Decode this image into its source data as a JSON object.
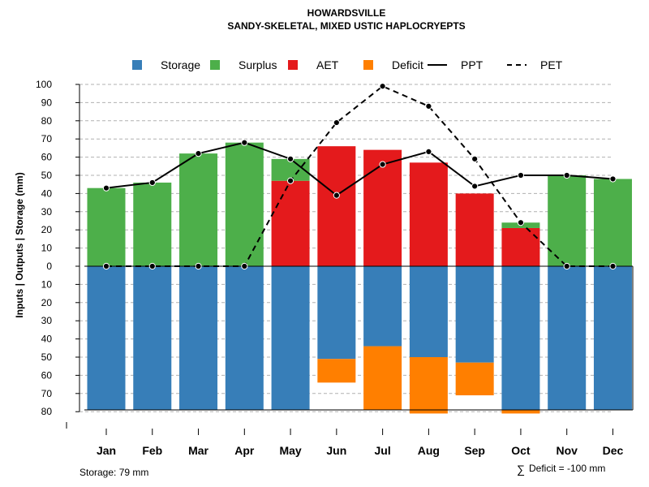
{
  "chart_data": {
    "type": "bar",
    "title": "HOWARDSVILLE",
    "subtitle": "SANDY-SKELETAL, MIXED USTIC HAPLOCRYEPTS",
    "ylabel": "Inputs | Outputs | Storage    (mm)",
    "ylim": [
      -80,
      100
    ],
    "grid": true,
    "categories": [
      "Jan",
      "Feb",
      "Mar",
      "Apr",
      "May",
      "Jun",
      "Jul",
      "Aug",
      "Sep",
      "Oct",
      "Nov",
      "Dec"
    ],
    "y_ticks_pos": [
      0,
      10,
      20,
      30,
      40,
      50,
      60,
      70,
      80,
      90,
      100
    ],
    "y_ticks_neg": [
      10,
      20,
      30,
      40,
      50,
      60,
      70,
      80
    ],
    "legend": {
      "position": "top",
      "items": [
        {
          "label": "Storage",
          "kind": "box",
          "color": "#377EB8"
        },
        {
          "label": "Surplus",
          "kind": "box",
          "color": "#4DAF4A"
        },
        {
          "label": "AET",
          "kind": "box",
          "color": "#E41A1C"
        },
        {
          "label": "Deficit",
          "kind": "box",
          "color": "#FF7F00"
        },
        {
          "label": "PPT",
          "kind": "solid",
          "color": "#000000"
        },
        {
          "label": "PET",
          "kind": "dashed",
          "color": "#000000"
        }
      ]
    },
    "series": [
      {
        "name": "Surplus",
        "color": "#4DAF4A",
        "values": [
          43,
          46,
          62,
          68,
          12,
          0,
          0,
          0,
          0,
          3,
          50,
          48
        ]
      },
      {
        "name": "AET",
        "color": "#E41A1C",
        "values": [
          0,
          0,
          0,
          0,
          47,
          66,
          64,
          57,
          40,
          21,
          0,
          0
        ]
      },
      {
        "name": "Storage",
        "color": "#377EB8",
        "values": [
          79,
          79,
          79,
          79,
          79,
          51,
          44,
          50,
          53,
          79,
          79,
          79
        ]
      },
      {
        "name": "Deficit",
        "color": "#FF7F00",
        "values": [
          0,
          0,
          0,
          0,
          0,
          13,
          35,
          31,
          18,
          2,
          0,
          0
        ]
      },
      {
        "name": "PPT",
        "color": "#000000",
        "values": [
          43,
          46,
          62,
          68,
          59,
          39,
          56,
          63,
          44,
          50,
          50,
          48
        ]
      },
      {
        "name": "PET",
        "color": "#000000",
        "values": [
          0,
          0,
          0,
          0,
          47,
          79,
          99,
          88,
          59,
          24,
          0,
          0
        ]
      }
    ],
    "storage_note": "Storage: 79 mm",
    "deficit_symbol": "∑",
    "deficit_note": "Deficit = -100 mm"
  }
}
